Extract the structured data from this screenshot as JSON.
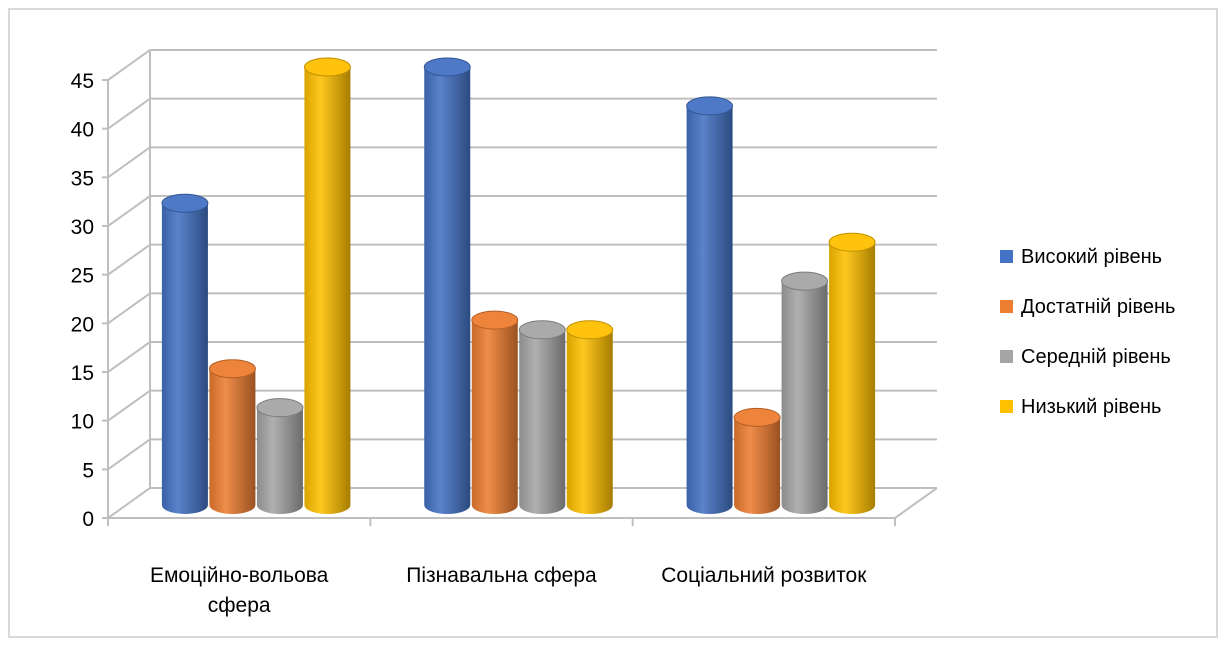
{
  "chart_data": {
    "type": "bar",
    "categories": [
      [
        "Емоційно-вольова",
        "сфера"
      ],
      [
        "Пізнавальна сфера"
      ],
      [
        "Соціальний розвиток"
      ]
    ],
    "series": [
      {
        "name": "Високий рівень",
        "values": [
          31,
          45,
          41
        ],
        "color": "#4472c4"
      },
      {
        "name": "Достатній рівень",
        "values": [
          14,
          19,
          9
        ],
        "color": "#ed7d31"
      },
      {
        "name": "Середній рівень",
        "values": [
          10,
          18,
          23
        ],
        "color": "#a5a5a5"
      },
      {
        "name": "Низький рівень",
        "values": [
          45,
          18,
          27
        ],
        "color": "#ffc000"
      }
    ],
    "yticks": [
      "0",
      "5",
      "10",
      "15",
      "20",
      "25",
      "30",
      "35",
      "40",
      "45"
    ],
    "ylim": [
      0,
      45
    ],
    "grid": true,
    "legend_position": "right",
    "style": "3d-cylinder"
  }
}
